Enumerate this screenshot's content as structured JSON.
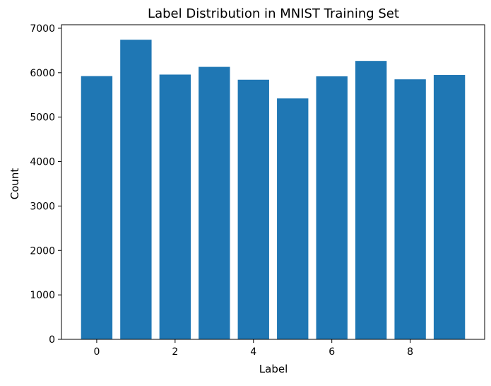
{
  "chart_data": {
    "type": "bar",
    "title": "Label Distribution in MNIST Training Set",
    "xlabel": "Label",
    "ylabel": "Count",
    "categories": [
      0,
      1,
      2,
      3,
      4,
      5,
      6,
      7,
      8,
      9
    ],
    "values": [
      5923,
      6742,
      5958,
      6131,
      5842,
      5421,
      5918,
      6265,
      5851,
      5949
    ],
    "xlim": [
      -0.9,
      9.9
    ],
    "ylim": [
      0,
      7079
    ],
    "x_ticks": [
      0,
      2,
      4,
      6,
      8
    ],
    "y_ticks": [
      0,
      1000,
      2000,
      3000,
      4000,
      5000,
      6000,
      7000
    ],
    "bar_width": 0.8,
    "bar_color": "#1f77b4",
    "grid": false,
    "legend": "none"
  }
}
